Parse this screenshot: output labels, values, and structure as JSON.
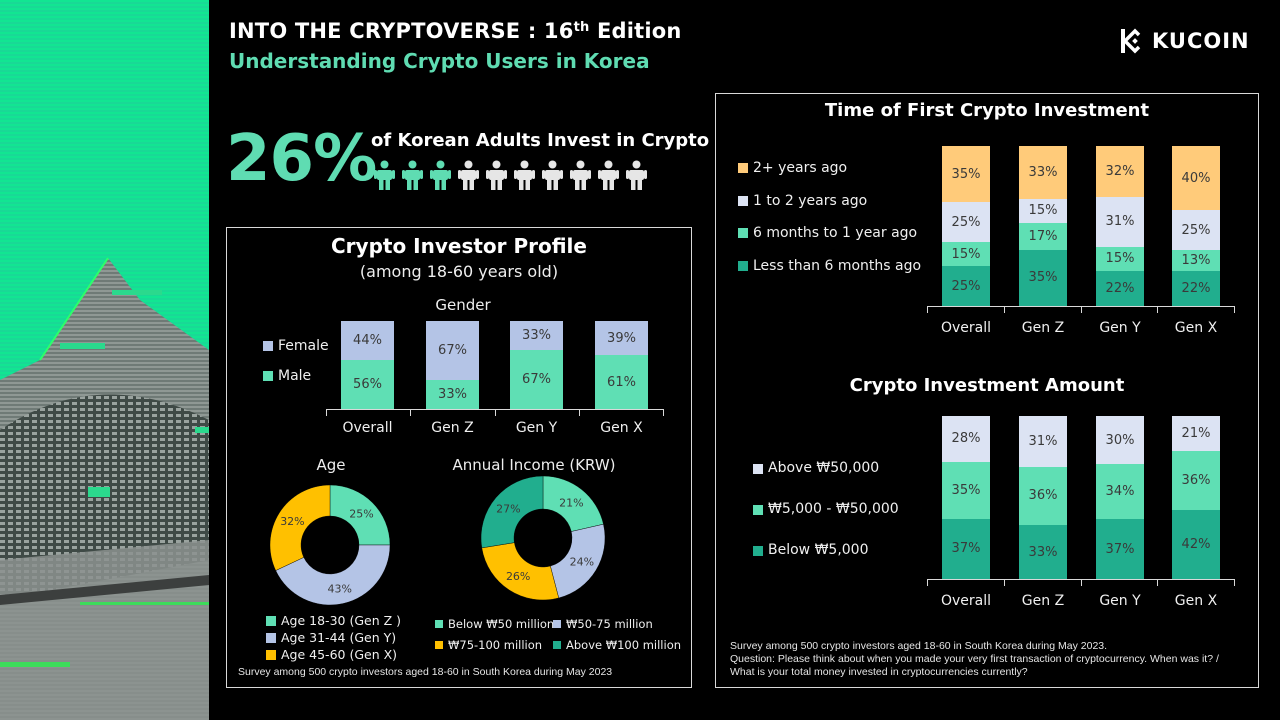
{
  "header": {
    "title_main": "INTO THE CRYPTOVERSE : 16",
    "title_sup": "th",
    "title_end": " Edition",
    "subtitle": "Understanding Crypto Users in Korea"
  },
  "logo": {
    "text": "KUCOIN",
    "icon": "kucoin-logo-icon"
  },
  "stat": {
    "value": "26%",
    "text": "of Korean Adults Invest in Crypto",
    "people_total": 10,
    "people_highlighted": 3,
    "highlight_color": "#5fdcb2",
    "base_color": "#e6e6e6"
  },
  "profile": {
    "title": "Crypto Investor Profile",
    "subtitle": "(among 18-60 years old)",
    "footnote": "Survey among 500 crypto investors aged 18-60 in South Korea during May 2023"
  },
  "right_panel": {
    "footnote_1": "Survey among 500 crypto investors aged 18-60 in South Korea  during May 2023.",
    "footnote_2": "Question: Please think about when you made your very first transaction of cryptocurrency. When was it? /",
    "footnote_3": "What is your total money invested in cryptocurrencies currently?"
  },
  "colors": {
    "mint": "#5fdfb4",
    "teal": "#21ae8e",
    "lavender": "#b4c4e6",
    "pale_lavender": "#dce3f3",
    "gold": "#ffc000",
    "peach": "#ffcb7a"
  },
  "chart_data": [
    {
      "type": "bar",
      "stacked": true,
      "title": "Gender",
      "categories": [
        "Overall",
        "Gen Z",
        "Gen Y",
        "Gen X"
      ],
      "series": [
        {
          "name": "Male",
          "color": "#5fdfb4",
          "values": [
            56,
            33,
            67,
            61
          ]
        },
        {
          "name": "Female",
          "color": "#b4c4e6",
          "values": [
            44,
            67,
            33,
            39
          ]
        }
      ],
      "legend": [
        "Female",
        "Male"
      ],
      "unit": "%"
    },
    {
      "type": "pie",
      "donut": true,
      "title": "Age",
      "labels": [
        "Age 18-30 (Gen Z )",
        "Age 31-44 (Gen Y)",
        "Age 45-60 (Gen X)"
      ],
      "values": [
        25,
        43,
        32
      ],
      "colors": [
        "#5fdfb4",
        "#b4c4e6",
        "#ffc000"
      ],
      "unit": "%"
    },
    {
      "type": "pie",
      "donut": true,
      "title": "Annual Income (KRW)",
      "labels": [
        "Below ₩50 million",
        "₩50-75 million",
        "₩75-100 million",
        "Above ₩100 million"
      ],
      "values": [
        21,
        24,
        26,
        27
      ],
      "colors": [
        "#5fdfb4",
        "#b4c4e6",
        "#ffc000",
        "#21ae8e"
      ],
      "unit": "%"
    },
    {
      "type": "bar",
      "stacked": true,
      "title": "Time of First Crypto Investment",
      "categories": [
        "Overall",
        "Gen Z",
        "Gen Y",
        "Gen X"
      ],
      "series": [
        {
          "name": "Less than 6 months ago",
          "color": "#21ae8e",
          "values": [
            25,
            35,
            22,
            22
          ]
        },
        {
          "name": "6 months to 1 year ago",
          "color": "#5fdfb4",
          "values": [
            15,
            17,
            15,
            13
          ]
        },
        {
          "name": "1 to 2 years ago",
          "color": "#dce3f3",
          "values": [
            25,
            15,
            31,
            25
          ]
        },
        {
          "name": "2+ years ago",
          "color": "#ffcb7a",
          "values": [
            35,
            33,
            32,
            40
          ]
        }
      ],
      "legend": [
        "2+ years ago",
        "1 to 2 years ago",
        "6 months to 1 year ago",
        "Less than 6 months ago"
      ],
      "unit": "%"
    },
    {
      "type": "bar",
      "stacked": true,
      "title": "Crypto Investment Amount",
      "categories": [
        "Overall",
        "Gen Z",
        "Gen Y",
        "Gen X"
      ],
      "series": [
        {
          "name": "Below ₩5,000",
          "color": "#21ae8e",
          "values": [
            37,
            33,
            37,
            42
          ]
        },
        {
          "name": "₩5,000 - ₩50,000",
          "color": "#5fdfb4",
          "values": [
            35,
            36,
            34,
            36
          ]
        },
        {
          "name": "Above  ₩50,000",
          "color": "#dce3f3",
          "values": [
            28,
            31,
            30,
            21
          ]
        }
      ],
      "legend": [
        "Above  ₩50,000",
        "₩5,000 - ₩50,000",
        "Below ₩5,000"
      ],
      "unit": "%"
    }
  ]
}
